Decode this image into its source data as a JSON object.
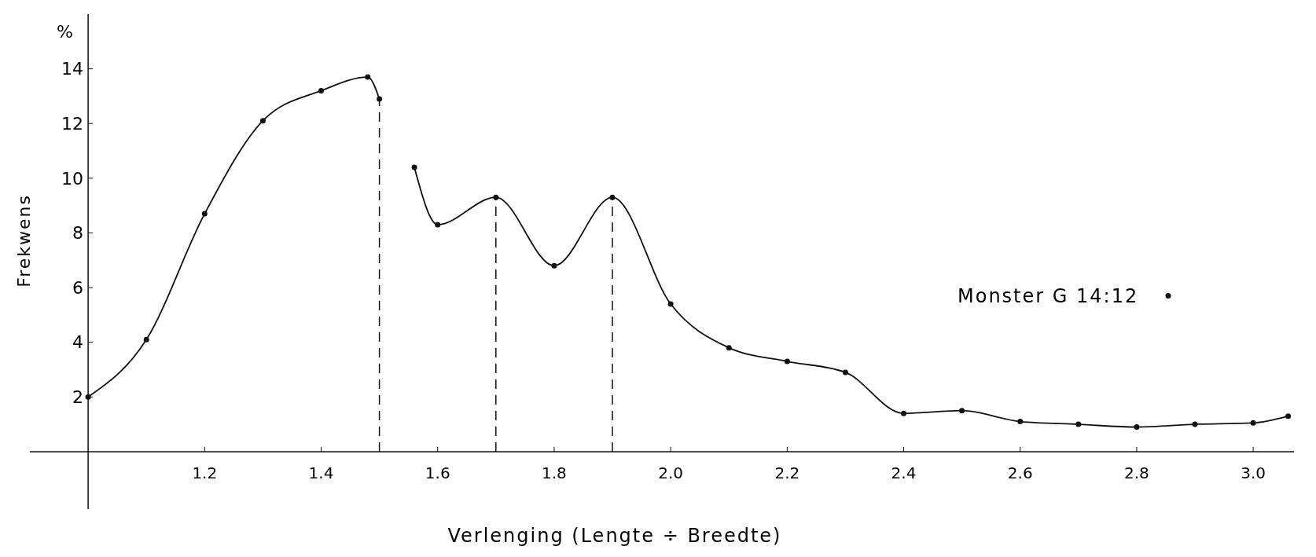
{
  "chart_data": {
    "type": "line",
    "xlabel": "Verlenging (Lengte ÷ Breedte)",
    "ylabel": "Frekwens",
    "annotations": [
      "%"
    ],
    "xlim": [
      0.9,
      3.07
    ],
    "ylim": [
      -2.1,
      16
    ],
    "xticks": [
      1.2,
      1.4,
      1.6,
      1.8,
      {
        "value": 2,
        "label": "2.0"
      },
      2.2,
      2.4,
      2.6,
      2.8,
      {
        "value": 3,
        "label": "3.0"
      }
    ],
    "yticks": [
      2,
      4,
      6,
      8,
      10,
      12,
      14
    ],
    "series": [
      {
        "name": "Monster G 14:12",
        "color": "#111111",
        "x": [
          1.0,
          1.1,
          1.2,
          1.3,
          1.4,
          1.48,
          1.5,
          1.53,
          1.56,
          1.6,
          1.7,
          1.8,
          1.9,
          2.0,
          2.1,
          2.2,
          2.3,
          2.4,
          2.5,
          2.6,
          2.7,
          2.8,
          2.9,
          3.0,
          3.06
        ],
        "values": [
          2.0,
          4.1,
          8.7,
          12.1,
          13.2,
          13.7,
          12.9,
          null,
          10.4,
          8.3,
          9.3,
          6.8,
          9.3,
          5.4,
          3.8,
          3.3,
          2.9,
          1.4,
          1.5,
          1.1,
          1.0,
          0.9,
          1.0,
          1.05,
          1.3
        ]
      }
    ],
    "ref_lines": [
      {
        "axis": "x",
        "value": 1.5,
        "line_style": "dashed",
        "color": "#111111"
      },
      {
        "axis": "x",
        "value": 1.7,
        "line_style": "dashed",
        "color": "#111111"
      },
      {
        "axis": "x",
        "value": 1.9,
        "line_style": "dashed",
        "color": "#111111"
      }
    ],
    "marker": "circle",
    "line_style": "solid",
    "legend": "center right",
    "grid": false
  }
}
